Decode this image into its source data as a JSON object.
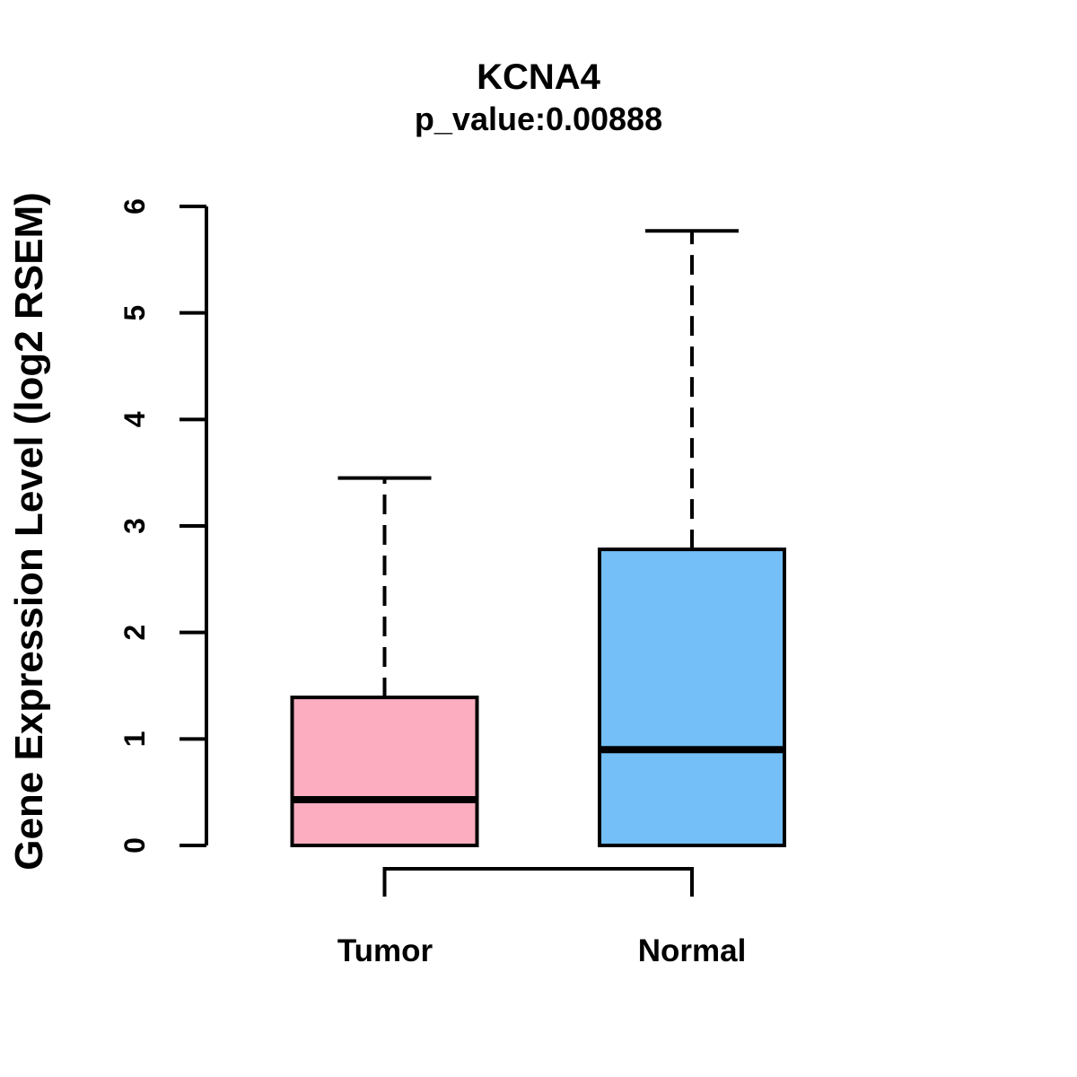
{
  "chart_data": {
    "type": "boxplot",
    "title": "KCNA4",
    "subtitle": "p_value:0.00888",
    "ylabel": "Gene Expression Level (log2 RSEM)",
    "xlabel": "",
    "ylim": [
      0,
      6
    ],
    "yticks": [
      0,
      1,
      2,
      3,
      4,
      5,
      6
    ],
    "categories": [
      "Tumor",
      "Normal"
    ],
    "grid": false,
    "legend": "none",
    "groups": [
      {
        "label": "Tumor",
        "fill_color": "#FCAEC0",
        "min": 0,
        "q1": 0,
        "median": 0.43,
        "q3": 1.39,
        "max": 3.45
      },
      {
        "label": "Normal",
        "fill_color": "#74BFF7",
        "min": 0,
        "q1": 0,
        "median": 0.9,
        "q3": 2.78,
        "max": 5.77
      }
    ],
    "annotations": {
      "comparison_bracket_between": [
        "Tumor",
        "Normal"
      ]
    }
  },
  "colors": {
    "background": "#FFFFFF",
    "stroke": "#000000",
    "text": "#000000"
  }
}
